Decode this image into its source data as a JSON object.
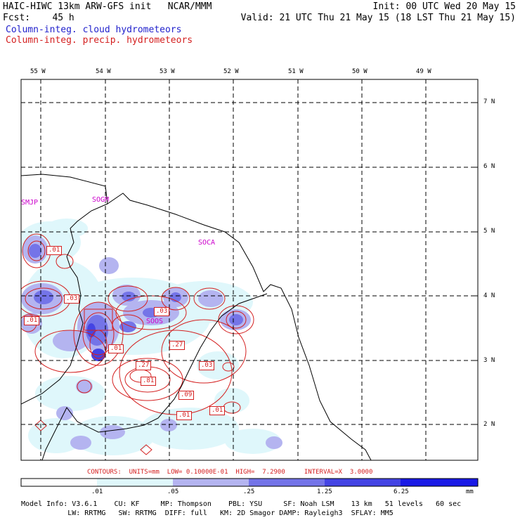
{
  "header": {
    "line1_left": "HAIC-HIWC 13km ARW-GFS init   NCAR/MMM",
    "line1_right": "Init: 00 UTC Wed 20 May 15",
    "line2_left": "Fcst:    45 h",
    "line2_right": "Valid: 21 UTC Thu 21 May 15 (18 LST Thu 21 May 15)",
    "legend_cloud": "Column-integ. cloud hydrometeors",
    "legend_precip": "Column-integ. precip. hydrometeors"
  },
  "map": {
    "lon_labels": [
      "55 W",
      "54 W",
      "53 W",
      "52 W",
      "51 W",
      "50 W",
      "49 W"
    ],
    "lat_labels": [
      "7 N",
      "6 N",
      "5 N",
      "4 N",
      "3 N",
      "2 N"
    ],
    "stations": [
      "SMJP",
      "SOGM",
      "SOCA",
      "SOOS"
    ],
    "contour_labels": [
      ".01",
      ".03",
      ".01",
      ".03",
      ".01",
      ".27",
      ".03",
      ".27",
      ".81",
      ".09",
      ".01",
      ".01"
    ],
    "contours_info": "CONTOURS:  UNITS=mm  LOW= 0.10000E-01  HIGH=  7.2900     INTERVAL=X  3.0000"
  },
  "colorbar": {
    "labels": [
      ".01",
      ".05",
      ".25",
      "1.25",
      "6.25"
    ],
    "units": "mm",
    "colors": [
      "#ffffff",
      "#dff7fb",
      "#b4b4f0",
      "#7474e8",
      "#4444e4",
      "#1a1ae6"
    ]
  },
  "footer": {
    "line1": "Model Info: V3.6.1    CU: KF     MP: Thompson    PBL: YSU     SF: Noah LSM    13 km   51 levels   60 sec",
    "line2": "           LW: RRTMG   SW: RRTMG  DIFF: full   KM: 2D Smagor DAMP: Rayleigh3  SFLAY: MM5"
  }
}
